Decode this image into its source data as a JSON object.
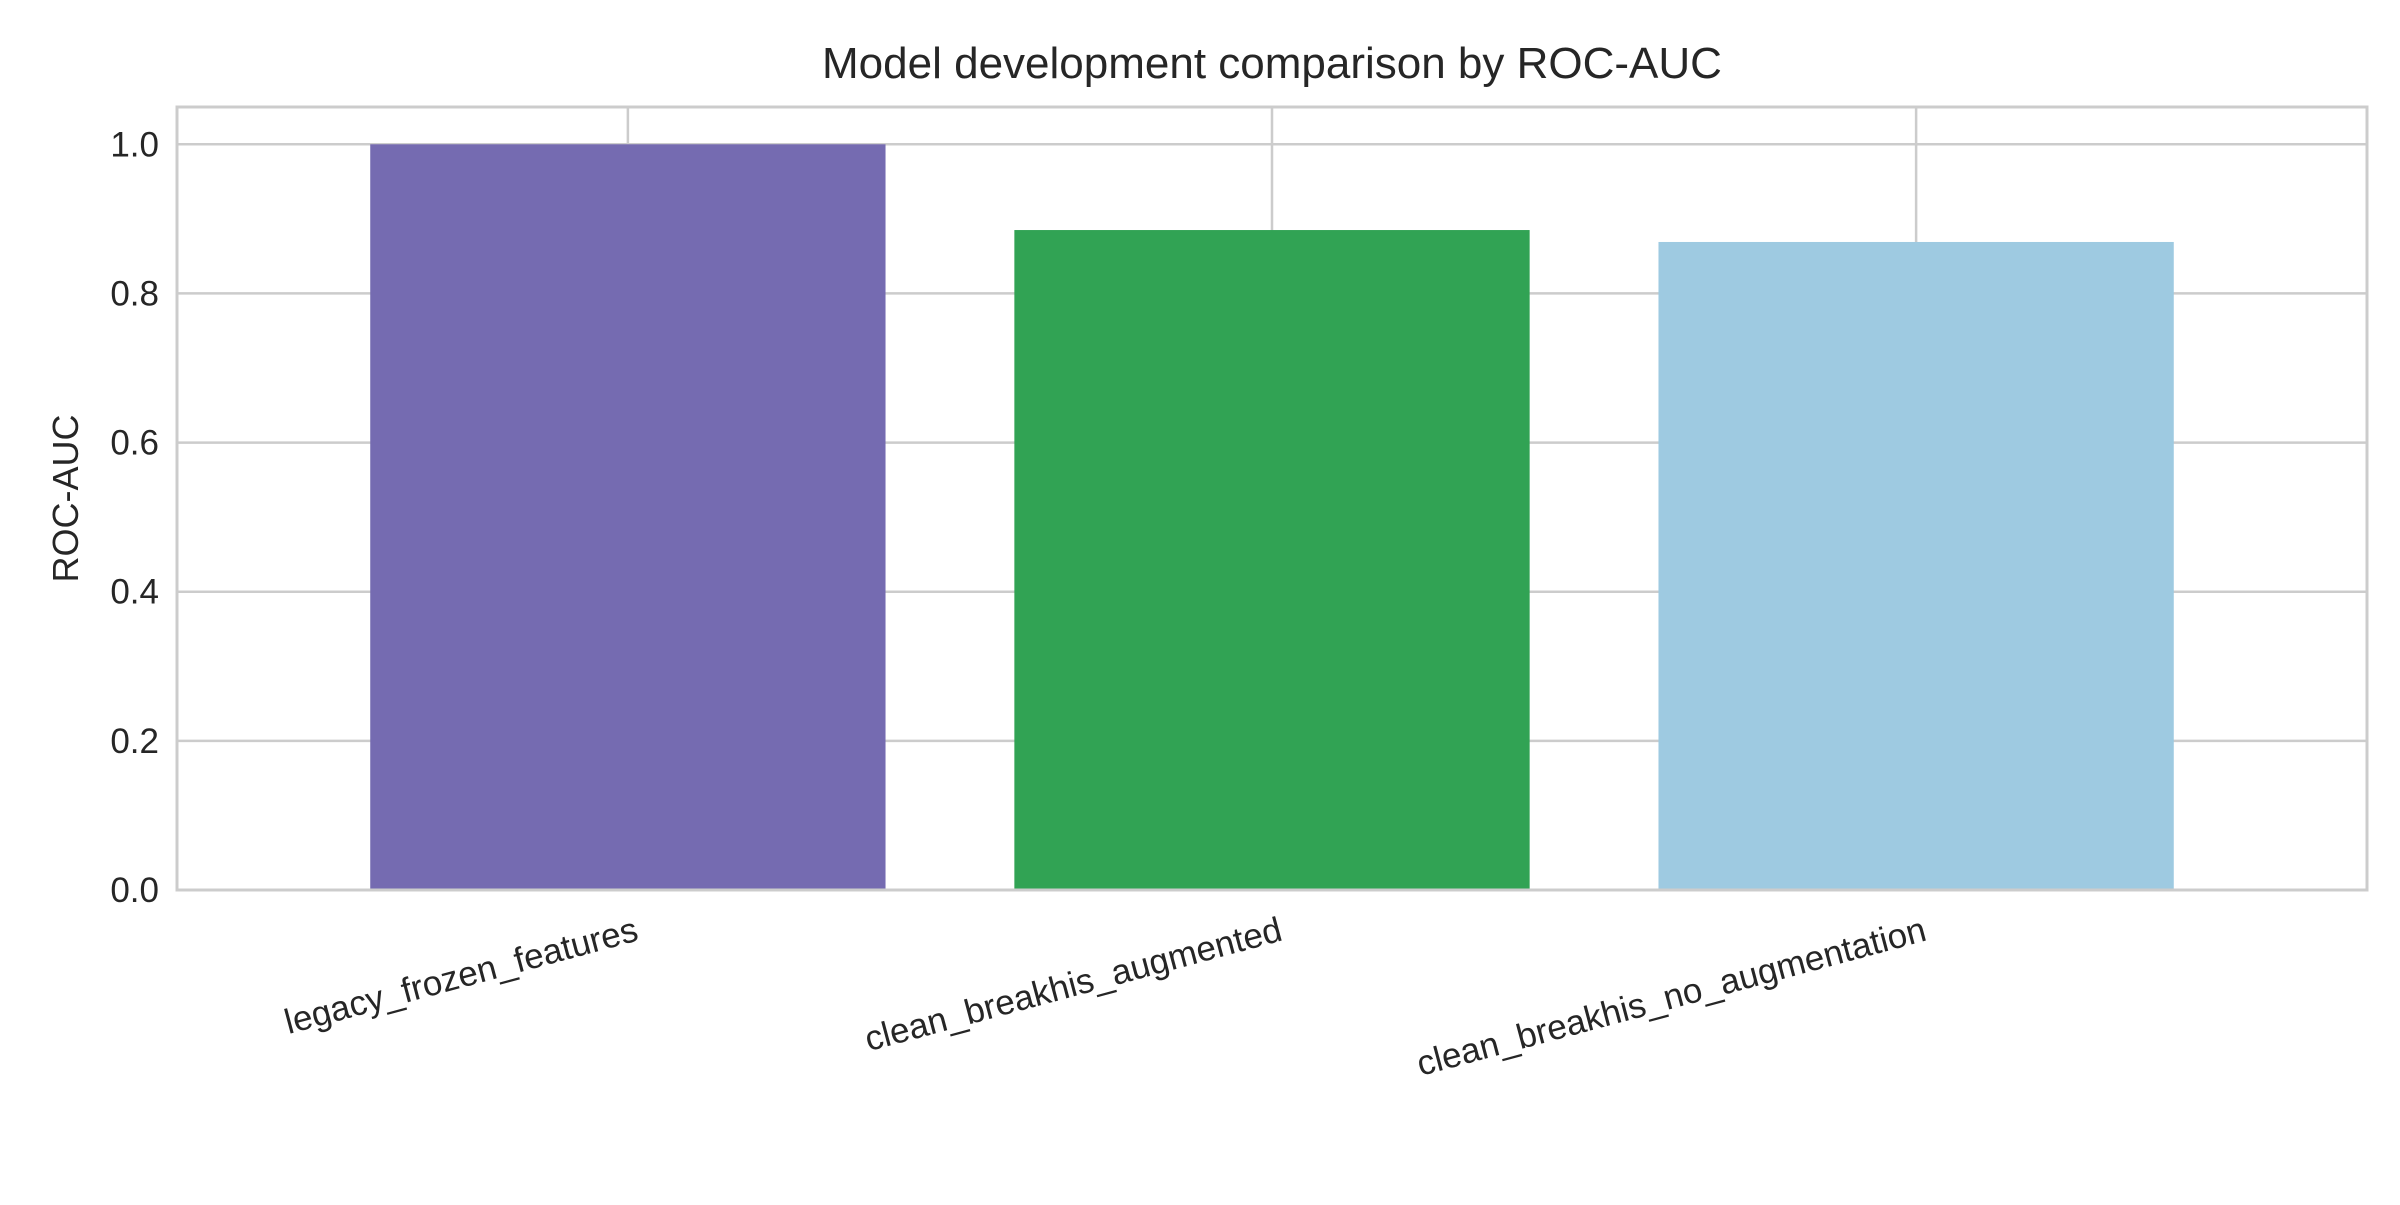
{
  "chart_data": {
    "type": "bar",
    "title": "Model development comparison by ROC-AUC",
    "xlabel": "",
    "ylabel": "ROC-AUC",
    "categories": [
      "legacy_frozen_features",
      "clean_breakhis_augmented",
      "clean_breakhis_no_augmentation"
    ],
    "values": [
      1.0,
      0.885,
      0.869
    ],
    "colors": [
      "#756bb1",
      "#31a354",
      "#9ecae1"
    ],
    "ylim": [
      0,
      1.05
    ],
    "yticks": [
      0.0,
      0.2,
      0.4,
      0.6,
      0.8,
      1.0
    ],
    "ytick_labels": [
      "0.0",
      "0.2",
      "0.4",
      "0.6",
      "0.8",
      "1.0"
    ],
    "grid": true,
    "legend": "none"
  }
}
